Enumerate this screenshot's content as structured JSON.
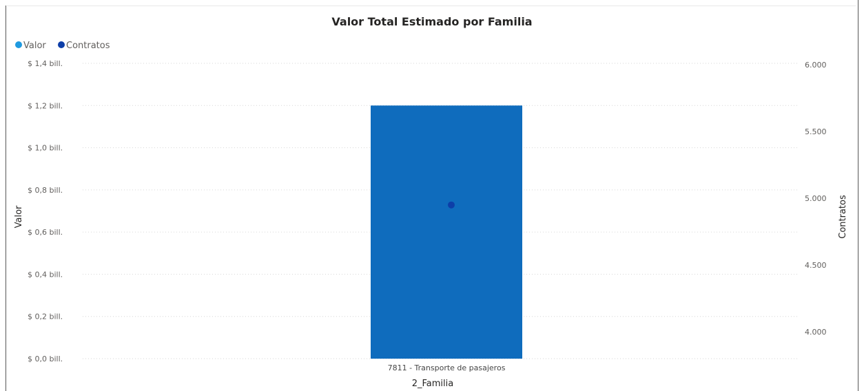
{
  "chart_data": {
    "type": "bar",
    "title": "Valor Total Estimado por Familia",
    "categories": [
      "7811 - Transporte de pasajeros"
    ],
    "series": [
      {
        "name": "Valor",
        "type": "bar",
        "axis": "left",
        "values": [
          1.2
        ],
        "color": "#0f6cbd"
      },
      {
        "name": "Contratos",
        "type": "point",
        "axis": "right",
        "values": [
          4950
        ],
        "color": "#0d3ea8"
      }
    ],
    "legend": {
      "placement": "top-left",
      "items": [
        {
          "label": "Valor",
          "color": "#1f9ae0"
        },
        {
          "label": "Contratos",
          "color": "#0d3ea8"
        }
      ]
    },
    "xlabel": "2_Familia",
    "ylabel": "Valor",
    "y2label": "Contratos",
    "ylim": [
      0,
      1.4
    ],
    "y2lim": [
      3800,
      6000
    ],
    "yticks": [
      {
        "value": 1.4,
        "label": "$ 1,4 bill."
      },
      {
        "value": 1.2,
        "label": "$ 1,2 bill."
      },
      {
        "value": 1.0,
        "label": "$ 1,0 bill."
      },
      {
        "value": 0.8,
        "label": "$ 0,8 bill."
      },
      {
        "value": 0.6,
        "label": "$ 0,6 bill."
      },
      {
        "value": 0.4,
        "label": "$ 0,4 bill."
      },
      {
        "value": 0.2,
        "label": "$ 0,2 bill."
      },
      {
        "value": 0.0,
        "label": "$ 0,0 bill."
      }
    ],
    "y2ticks": [
      {
        "value": 6000,
        "label": "6.000"
      },
      {
        "value": 5500,
        "label": "5.500"
      },
      {
        "value": 5000,
        "label": "5.000"
      },
      {
        "value": 4500,
        "label": "4.500"
      },
      {
        "value": 4000,
        "label": "4.000"
      }
    ],
    "grid": true
  }
}
